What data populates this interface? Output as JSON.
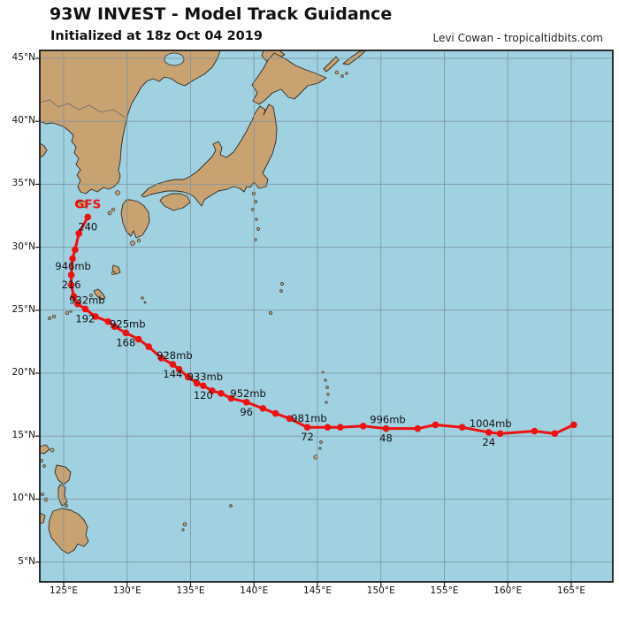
{
  "figure": {
    "title": "93W INVEST - Model Track Guidance",
    "subtitle": "Initialized at 18z Oct 04 2019",
    "credit": "Levi Cowan - tropicaltidbits.com"
  },
  "colors": {
    "ocean": "#9fd1e1",
    "land": "#c9a272",
    "coast": "#2e2a24",
    "grid": "#7d93a0",
    "border_line": "#6b6b6b",
    "frame": "#1a1a1a",
    "track": "#ee1111",
    "label": "#111111"
  },
  "axes": {
    "lon_ticks": [
      {
        "label": "125°E",
        "lon": 125
      },
      {
        "label": "130°E",
        "lon": 130
      },
      {
        "label": "135°E",
        "lon": 135
      },
      {
        "label": "140°E",
        "lon": 140
      },
      {
        "label": "145°E",
        "lon": 145
      },
      {
        "label": "150°E",
        "lon": 150
      },
      {
        "label": "155°E",
        "lon": 155
      },
      {
        "label": "160°E",
        "lon": 160
      },
      {
        "label": "165°E",
        "lon": 165
      }
    ],
    "lat_ticks": [
      {
        "label": "45°N",
        "lat": 45
      },
      {
        "label": "40°N",
        "lat": 40
      },
      {
        "label": "35°N",
        "lat": 35
      },
      {
        "label": "30°N",
        "lat": 30
      },
      {
        "label": "25°N",
        "lat": 25
      },
      {
        "label": "20°N",
        "lat": 20
      },
      {
        "label": "15°N",
        "lat": 15
      },
      {
        "label": "10°N",
        "lat": 10
      },
      {
        "label": "5°N",
        "lat": 5
      }
    ]
  },
  "chart_data": {
    "type": "line",
    "model": "GFS",
    "model_label": "GFS",
    "track": [
      {
        "hour": 0,
        "lon": 165.2,
        "lat": 15.9
      },
      {
        "hour": 6,
        "lon": 163.7,
        "lat": 15.2
      },
      {
        "hour": 12,
        "lon": 162.1,
        "lat": 15.4
      },
      {
        "hour": 18,
        "lon": 159.4,
        "lat": 15.2
      },
      {
        "hour": 24,
        "lon": 158.5,
        "lat": 15.3,
        "hour_label": "24",
        "pressure_label": "1004mb"
      },
      {
        "hour": 30,
        "lon": 156.4,
        "lat": 15.7
      },
      {
        "hour": 36,
        "lon": 154.3,
        "lat": 15.9
      },
      {
        "hour": 42,
        "lon": 152.9,
        "lat": 15.6
      },
      {
        "hour": 48,
        "lon": 150.4,
        "lat": 15.6,
        "hour_label": "48",
        "pressure_label": "996mb"
      },
      {
        "hour": 54,
        "lon": 148.6,
        "lat": 15.8
      },
      {
        "hour": 60,
        "lon": 146.8,
        "lat": 15.7
      },
      {
        "hour": 66,
        "lon": 145.8,
        "lat": 15.7
      },
      {
        "hour": 72,
        "lon": 144.2,
        "lat": 15.7,
        "hour_label": "72",
        "pressure_label": "981mb"
      },
      {
        "hour": 78,
        "lon": 142.8,
        "lat": 16.4
      },
      {
        "hour": 84,
        "lon": 141.7,
        "lat": 16.8
      },
      {
        "hour": 90,
        "lon": 140.7,
        "lat": 17.2
      },
      {
        "hour": 96,
        "lon": 139.4,
        "lat": 17.7,
        "hour_label": "96",
        "pressure_label": "952mb"
      },
      {
        "hour": 102,
        "lon": 138.2,
        "lat": 18.0
      },
      {
        "hour": 108,
        "lon": 137.4,
        "lat": 18.4
      },
      {
        "hour": 114,
        "lon": 136.7,
        "lat": 18.6
      },
      {
        "hour": 120,
        "lon": 136.0,
        "lat": 19.0,
        "hour_label": "120",
        "pressure_label": "933mb"
      },
      {
        "hour": 126,
        "lon": 135.5,
        "lat": 19.2
      },
      {
        "hour": 132,
        "lon": 134.8,
        "lat": 19.7
      },
      {
        "hour": 138,
        "lon": 134.1,
        "lat": 20.3
      },
      {
        "hour": 144,
        "lon": 133.6,
        "lat": 20.7,
        "hour_label": "144",
        "pressure_label": "928mb"
      },
      {
        "hour": 150,
        "lon": 132.7,
        "lat": 21.2
      },
      {
        "hour": 156,
        "lon": 131.7,
        "lat": 22.1
      },
      {
        "hour": 162,
        "lon": 130.9,
        "lat": 22.7
      },
      {
        "hour": 168,
        "lon": 129.9,
        "lat": 23.2,
        "hour_label": "168",
        "pressure_label": "925mb"
      },
      {
        "hour": 174,
        "lon": 129.0,
        "lat": 23.7
      },
      {
        "hour": 180,
        "lon": 128.5,
        "lat": 24.1
      },
      {
        "hour": 186,
        "lon": 127.5,
        "lat": 24.5
      },
      {
        "hour": 192,
        "lon": 126.7,
        "lat": 25.1,
        "hour_label": "192",
        "pressure_label": "932mb"
      },
      {
        "hour": 198,
        "lon": 126.1,
        "lat": 25.5
      },
      {
        "hour": 204,
        "lon": 125.8,
        "lat": 26.1
      },
      {
        "hour": 210,
        "lon": 125.6,
        "lat": 27.0
      },
      {
        "hour": 216,
        "lon": 125.6,
        "lat": 27.8,
        "hour_label": "216",
        "pressure_label": "946mb"
      },
      {
        "hour": 222,
        "lon": 125.7,
        "lat": 29.1
      },
      {
        "hour": 228,
        "lon": 125.9,
        "lat": 29.8
      },
      {
        "hour": 234,
        "lon": 126.2,
        "lat": 31.1
      },
      {
        "hour": 240,
        "lon": 126.9,
        "lat": 32.4,
        "hour_label": "240"
      }
    ]
  }
}
